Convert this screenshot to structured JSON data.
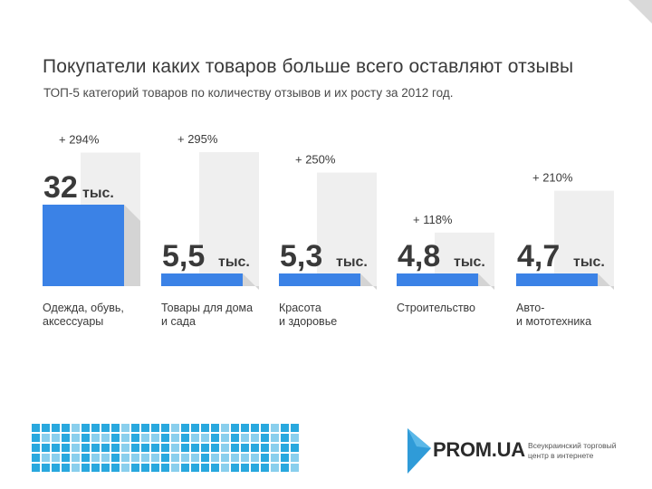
{
  "header": {
    "title": "Покупатели каких товаров больше всего оставляют отзывы",
    "subtitle": "ТОП-5 категорий товаров по количеству отзывов и их росту за 2012 год."
  },
  "chart_data": {
    "type": "bar",
    "unit": "тыс.",
    "categories": [
      [
        "Одежда, обувь,",
        "аксессуары"
      ],
      [
        "Товары для дома",
        "и сада"
      ],
      [
        "Красота",
        "и здоровье"
      ],
      [
        "Строительство"
      ],
      [
        "Авто-",
        "и мототехника"
      ]
    ],
    "value_labels": [
      "32",
      "5,5",
      "5,3",
      "4,8",
      "4,7"
    ],
    "values": [
      32,
      5.5,
      5.3,
      4.8,
      4.7
    ],
    "growth_labels": [
      "+ 294%",
      "+ 295%",
      "+ 250%",
      "+ 118%",
      "+ 210%"
    ],
    "growth": [
      294,
      295,
      250,
      118,
      210
    ],
    "colors": {
      "bar": "#3b82e6",
      "bar_shadow": "#d4d4d4",
      "growth_panel": "#efefef"
    }
  },
  "footer": {
    "brand_name": "PROM.UA",
    "brand_tagline_1": "Всеукраинский торговый",
    "brand_tagline_2": "центр в интернете",
    "brand_color": "#2f9bd8",
    "left_logo_color": "#29a8de"
  }
}
